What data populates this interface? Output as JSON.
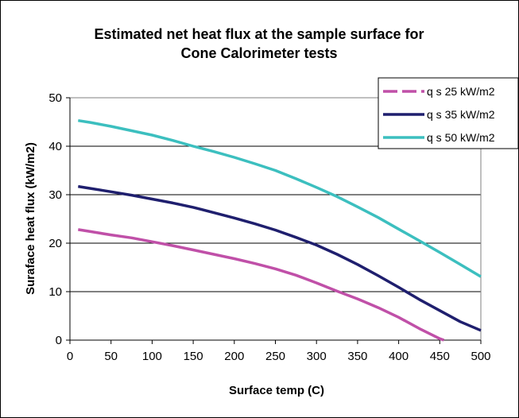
{
  "chart_data": {
    "type": "line",
    "title_lines": [
      "Estimated net heat flux at the sample surface for",
      "Cone Calorimeter tests"
    ],
    "xlabel": "Surface temp (C)",
    "ylabel": "Suraface heat flux (kW/m2)",
    "xlim": [
      0,
      500
    ],
    "ylim": [
      0,
      50
    ],
    "xticks": [
      0,
      50,
      100,
      150,
      200,
      250,
      300,
      350,
      400,
      450,
      500
    ],
    "yticks": [
      0,
      10,
      20,
      30,
      40,
      50
    ],
    "grid": "horizontal",
    "legend_position": "top-right",
    "series": [
      {
        "name": "q s  25 kW/m2",
        "color": "#c050a8",
        "dashed_legend": true,
        "x": [
          10,
          25,
          50,
          75,
          100,
          125,
          150,
          175,
          200,
          225,
          250,
          275,
          300,
          325,
          350,
          375,
          400,
          425,
          450,
          455
        ],
        "y": [
          22.8,
          22.4,
          21.7,
          21.1,
          20.3,
          19.5,
          18.6,
          17.7,
          16.8,
          15.8,
          14.7,
          13.4,
          11.8,
          10.1,
          8.5,
          6.7,
          4.7,
          2.4,
          0.3,
          0
        ]
      },
      {
        "name": "q s  35 kW/m2",
        "color": "#1f1f6e",
        "dashed_legend": false,
        "x": [
          10,
          25,
          50,
          75,
          100,
          125,
          150,
          175,
          200,
          225,
          250,
          275,
          300,
          325,
          350,
          375,
          400,
          425,
          450,
          475,
          500
        ],
        "y": [
          31.7,
          31.3,
          30.6,
          29.9,
          29.1,
          28.3,
          27.4,
          26.3,
          25.2,
          24.0,
          22.7,
          21.2,
          19.6,
          17.7,
          15.6,
          13.3,
          10.9,
          8.4,
          6.1,
          3.8,
          2.0
        ]
      },
      {
        "name": "q s  50 kW/m2",
        "color": "#3cbfbf",
        "dashed_legend": false,
        "x": [
          10,
          25,
          50,
          75,
          100,
          125,
          150,
          175,
          200,
          225,
          250,
          275,
          300,
          325,
          350,
          375,
          400,
          425,
          450,
          475,
          500
        ],
        "y": [
          45.3,
          44.9,
          44.1,
          43.2,
          42.3,
          41.2,
          40.0,
          38.9,
          37.7,
          36.4,
          35.0,
          33.3,
          31.5,
          29.6,
          27.5,
          25.3,
          22.9,
          20.5,
          18.1,
          15.6,
          13.1
        ]
      }
    ]
  }
}
